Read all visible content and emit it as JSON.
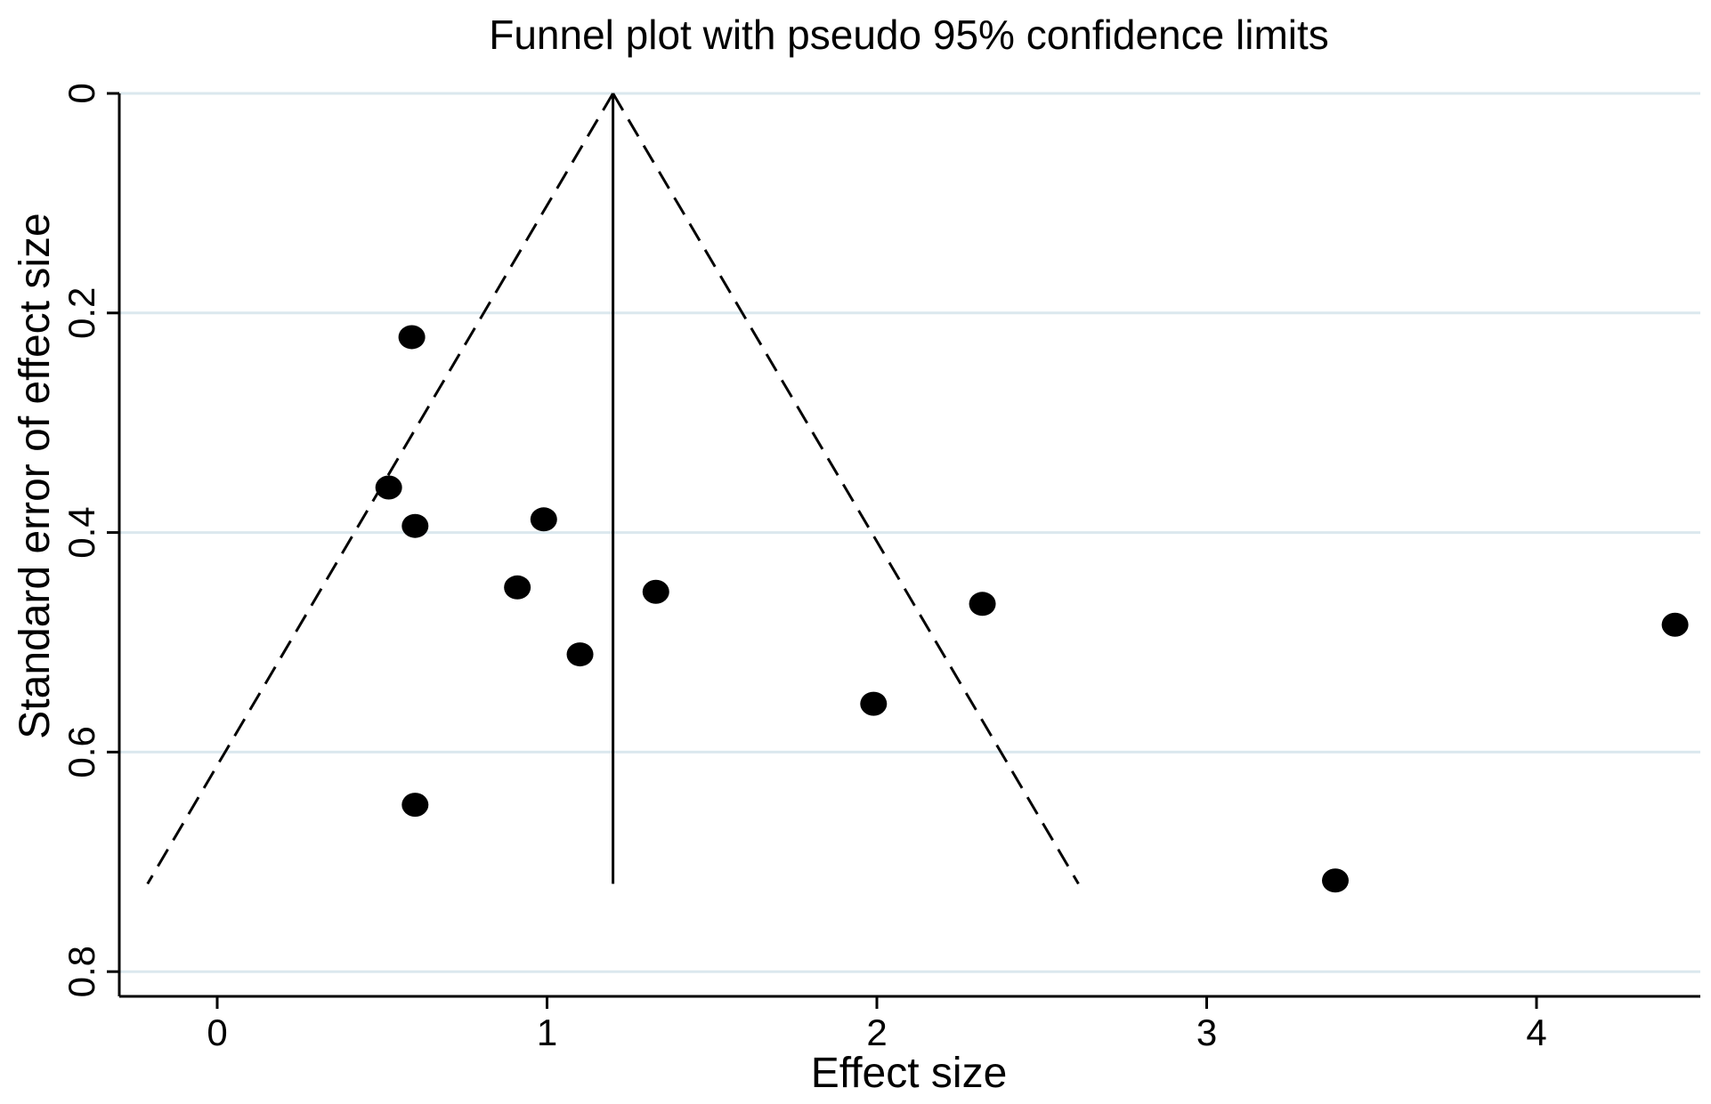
{
  "chart_data": {
    "type": "scatter",
    "title": "Funnel plot with pseudo 95% confidence limits",
    "xlabel": "Effect size",
    "ylabel": "Standard error of effect size",
    "xlim": [
      -0.3,
      4.5
    ],
    "ylim": [
      0,
      0.8
    ],
    "y_inverted": true,
    "xticks": [
      0,
      1,
      2,
      3,
      4
    ],
    "xtick_labels": [
      "0",
      "1",
      "2",
      "3",
      "4"
    ],
    "yticks": [
      0,
      0.2,
      0.4,
      0.6,
      0.8
    ],
    "ytick_labels": [
      "0",
      "0.2",
      "0.4",
      "0.6",
      "0.8"
    ],
    "grid": "horizontal",
    "pooled_effect": 1.2,
    "se_max": 0.72,
    "points": [
      {
        "x": 0.59,
        "y": 0.222
      },
      {
        "x": 0.52,
        "y": 0.359
      },
      {
        "x": 0.6,
        "y": 0.394
      },
      {
        "x": 0.99,
        "y": 0.388
      },
      {
        "x": 0.91,
        "y": 0.45
      },
      {
        "x": 1.33,
        "y": 0.454
      },
      {
        "x": 1.1,
        "y": 0.511
      },
      {
        "x": 2.32,
        "y": 0.465
      },
      {
        "x": 1.99,
        "y": 0.556
      },
      {
        "x": 4.42,
        "y": 0.484
      },
      {
        "x": 0.6,
        "y": 0.648
      },
      {
        "x": 3.39,
        "y": 0.717
      }
    ]
  }
}
